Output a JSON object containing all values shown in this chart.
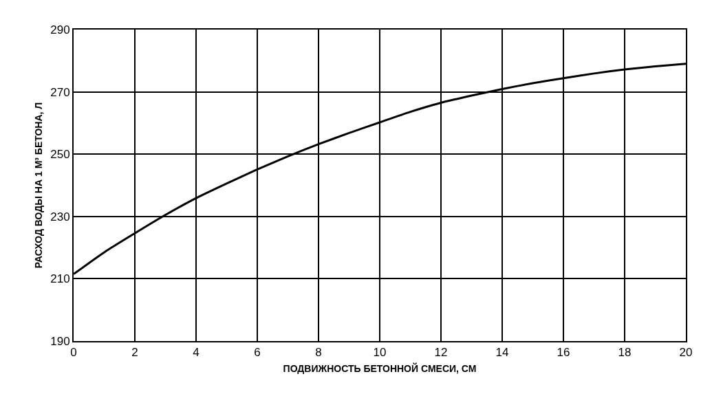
{
  "chart_data": {
    "type": "line",
    "xlabel": "ПОДВИЖНОСТЬ БЕТОННОЙ СМЕСИ, СМ",
    "ylabel": "РАСХОД ВОДЫ НА 1 М³ БЕТОНА, Л",
    "x": [
      0,
      1,
      2,
      3,
      4,
      5,
      6,
      7,
      8,
      9,
      10,
      11,
      12,
      13,
      14,
      15,
      16,
      17,
      18,
      19,
      20
    ],
    "series": [
      {
        "color": "#000000",
        "values": [
          211.5,
          218.5,
          224.6,
          230.5,
          235.9,
          240.6,
          245.1,
          249.3,
          253.2,
          256.8,
          260.2,
          263.6,
          266.5,
          268.8,
          270.9,
          272.8,
          274.4,
          275.9,
          277.2,
          278.2,
          279.0
        ]
      }
    ],
    "xlim": [
      0,
      20
    ],
    "xticks": [
      0,
      2,
      4,
      6,
      8,
      10,
      12,
      14,
      16,
      18,
      20
    ],
    "ylim": [
      190,
      290
    ],
    "yticks": [
      190,
      210,
      230,
      250,
      270,
      290
    ],
    "grid": true,
    "marker": "none",
    "line_style": "solid"
  }
}
